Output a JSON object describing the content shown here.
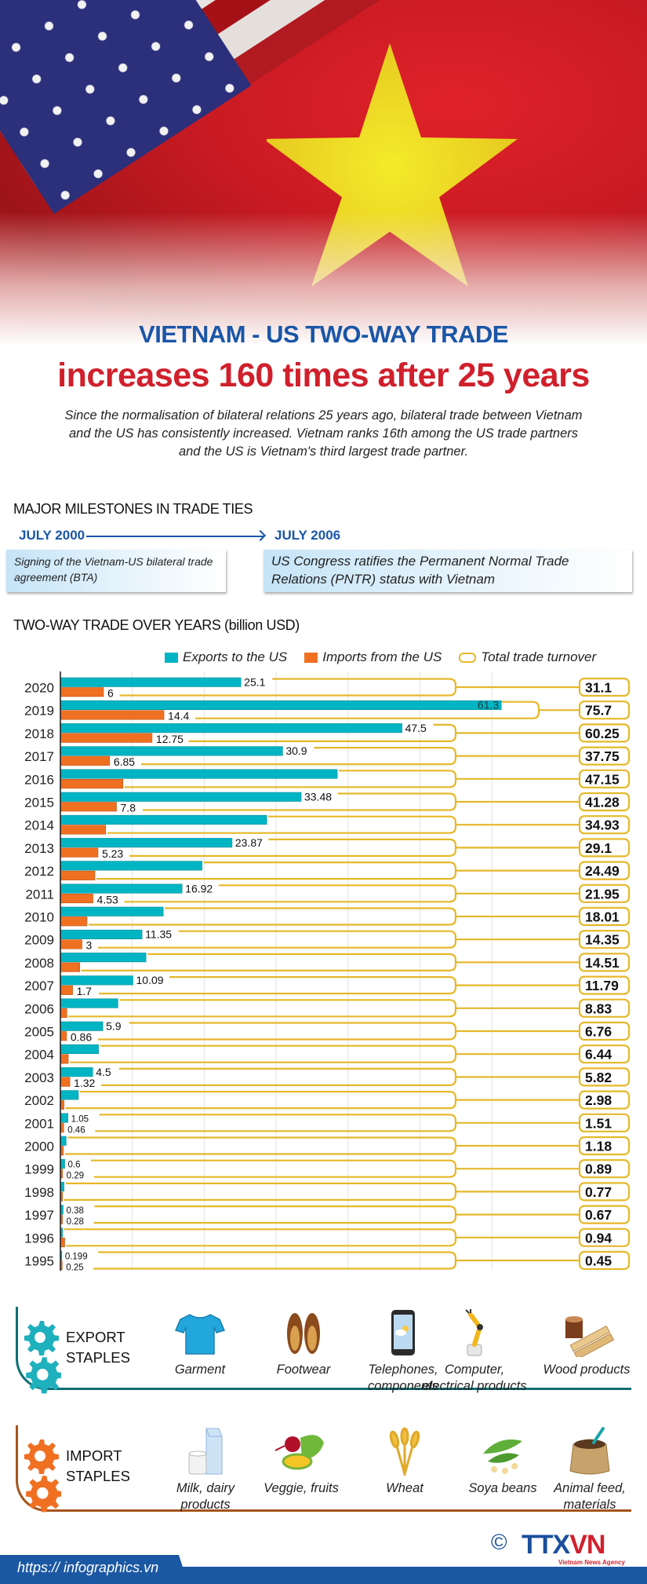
{
  "header": {
    "title_line1": "VIETNAM - US TWO-WAY TRADE",
    "title_line2": "increases 160 times after 25 years",
    "intro": "Since the normalisation of bilateral relations 25 years ago, bilateral trade between Vietnam and the US has consistently increased. Vietnam ranks 16th among the US trade partners and the US is Vietnam's third largest trade partner."
  },
  "milestones": {
    "heading": "MAJOR MILESTONES IN TRADE TIES",
    "items": [
      {
        "date": "JULY 2000",
        "text": "Signing of the Vietnam-US bilateral trade agreement (BTA)"
      },
      {
        "date": "JULY 2006",
        "text": "US Congress  ratifies the Permanent Normal Trade Relations (PNTR) status with Vietnam"
      }
    ]
  },
  "chart_heading": "TWO-WAY TRADE OVER YEARS (billion USD)",
  "legend": {
    "exports": "Exports to the US",
    "imports": "Imports from the US",
    "total": "Total trade turnover"
  },
  "colors": {
    "exports": "#00b5c3",
    "imports": "#f07022",
    "total_outline": "#e5b82a",
    "title_blue": "#1a56a7",
    "title_red": "#d0202c",
    "export_staple": "#0e6f73",
    "import_staple": "#a5541c"
  },
  "chart_data": {
    "type": "bar",
    "orientation": "horizontal",
    "title": "TWO-WAY TRADE OVER YEARS (billion USD)",
    "xlabel": "",
    "ylabel": "",
    "xlim": [
      0,
      60
    ],
    "grid": true,
    "legend_position": "top-right",
    "categories": [
      "2020",
      "2019",
      "2018",
      "2017",
      "2016",
      "2015",
      "2014",
      "2013",
      "2012",
      "2011",
      "2010",
      "2009",
      "2008",
      "2007",
      "2006",
      "2005",
      "2004",
      "2003",
      "2002",
      "2001",
      "2000",
      "1999",
      "1998",
      "1997",
      "1996",
      "1995"
    ],
    "series": [
      {
        "name": "Exports to the US",
        "values": [
          25.1,
          61.3,
          47.5,
          30.9,
          38.5,
          33.48,
          28.7,
          23.87,
          19.7,
          16.92,
          14.3,
          11.35,
          11.9,
          10.09,
          8.0,
          5.9,
          5.3,
          4.5,
          2.5,
          1.05,
          0.8,
          0.6,
          0.5,
          0.38,
          0.3,
          0.199
        ],
        "labels": [
          "25.1",
          "61.3",
          "47.5",
          "30.9",
          "",
          "33.48",
          "",
          "23.87",
          "",
          "16.92",
          "",
          "11.35",
          "",
          "10.09",
          "",
          "5.9",
          "",
          "4.5",
          "",
          "1.05",
          "",
          "0.6",
          "",
          "0.38",
          "",
          "0.199"
        ]
      },
      {
        "name": "Imports from the US",
        "values": [
          6,
          14.4,
          12.75,
          6.85,
          8.7,
          7.8,
          6.3,
          5.23,
          4.8,
          4.53,
          3.7,
          3,
          2.7,
          1.7,
          0.9,
          0.86,
          1.1,
          1.32,
          0.5,
          0.46,
          0.4,
          0.29,
          0.3,
          0.28,
          0.6,
          0.25
        ],
        "labels": [
          "6",
          "14.4",
          "12.75",
          "6.85",
          "",
          "7.8",
          "",
          "5.23",
          "",
          "4.53",
          "",
          "3",
          "",
          "1.7",
          "",
          "0.86",
          "",
          "1.32",
          "",
          "0.46",
          "",
          "0.29",
          "",
          "0.28",
          "",
          "0.25"
        ]
      },
      {
        "name": "Total trade turnover",
        "values": [
          31.1,
          75.7,
          60.25,
          37.75,
          47.15,
          41.28,
          34.93,
          29.1,
          24.49,
          21.95,
          18.01,
          14.35,
          14.51,
          11.79,
          8.83,
          6.76,
          6.44,
          5.82,
          2.98,
          1.51,
          1.18,
          0.89,
          0.77,
          0.67,
          0.94,
          0.45
        ],
        "labels": [
          "31.1",
          "75.7",
          "60.25",
          "37.75",
          "47.15",
          "41.28",
          "34.93",
          "29.1",
          "24.49",
          "21.95",
          "18.01",
          "14.35",
          "14.51",
          "11.79",
          "8.83",
          "6.76",
          "6.44",
          "5.82",
          "2.98",
          "1.51",
          "1.18",
          "0.89",
          "0.77",
          "0.67",
          "0.94",
          "0.45"
        ]
      }
    ]
  },
  "export_staples": {
    "label_line1": "EXPORT",
    "label_line2": "STAPLES",
    "items": [
      {
        "name": "Garment",
        "icon": "t-shirt-icon"
      },
      {
        "name": "Footwear",
        "icon": "shoes-icon"
      },
      {
        "name": "Telephones, components",
        "icon": "smartphone-icon"
      },
      {
        "name": "Computer, electrical products",
        "icon": "robot-arm-icon"
      },
      {
        "name": "Wood products",
        "icon": "wood-planks-icon"
      }
    ]
  },
  "import_staples": {
    "label_line1": "IMPORT",
    "label_line2": "STAPLES",
    "items": [
      {
        "name": "Milk, dairy products",
        "icon": "milk-carton-icon"
      },
      {
        "name": "Veggie, fruits",
        "icon": "vegetables-icon"
      },
      {
        "name": "Wheat",
        "icon": "wheat-icon"
      },
      {
        "name": "Soya beans",
        "icon": "soybeans-icon"
      },
      {
        "name": "Animal feed, materials",
        "icon": "feed-sack-icon"
      }
    ]
  },
  "footer": {
    "url": "https:// infographics.vn",
    "copyright_symbol": "©",
    "logo_text_a": "TTX",
    "logo_text_b": "VN",
    "agency": "Vietnam News Agency"
  }
}
